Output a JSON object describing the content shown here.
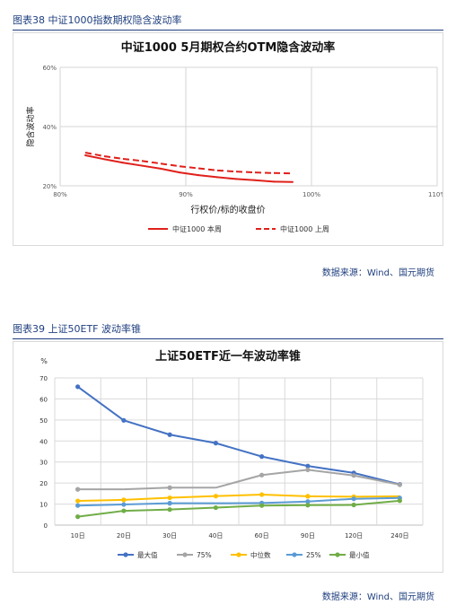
{
  "sections": [
    {
      "title": "图表38 中证1000指数期权隐含波动率",
      "source": "数据来源：Wind、国元期货"
    },
    {
      "title": "图表39 上证50ETF 波动率锥",
      "source": "数据来源：Wind、国元期货"
    }
  ],
  "chart_data": [
    {
      "type": "line",
      "title": "中证1000 5月期权合约OTM隐含波动率",
      "xlabel": "行权价/标的收盘价",
      "ylabel": "隐含波动率",
      "xlim": [
        80,
        110
      ],
      "ylim": [
        20,
        60
      ],
      "x_ticks": [
        80,
        90,
        100,
        110
      ],
      "x_tick_labels": [
        "80%",
        "90%",
        "100%",
        "110%"
      ],
      "y_ticks": [
        20,
        40,
        60
      ],
      "y_tick_labels": [
        "20%",
        "40%",
        "60%"
      ],
      "grid": true,
      "legend_position": "bottom",
      "series": [
        {
          "name": "中证1000 本周",
          "style": "solid",
          "color": "#e0201b",
          "x": [
            82.0,
            83.5,
            85.0,
            86.5,
            88.0,
            89.5,
            91.0,
            92.5,
            94.0,
            95.5,
            97.0,
            98.5
          ],
          "y": [
            30.3,
            29.0,
            27.8,
            26.8,
            25.8,
            24.5,
            23.6,
            22.9,
            22.3,
            21.9,
            21.4,
            21.3
          ]
        },
        {
          "name": "中证1000 上周",
          "style": "dashed",
          "color": "#e0201b",
          "x": [
            82.0,
            83.5,
            85.0,
            86.5,
            88.0,
            89.5,
            91.0,
            92.5,
            94.0,
            95.5,
            97.0,
            98.5
          ],
          "y": [
            31.2,
            30.0,
            29.1,
            28.4,
            27.5,
            26.6,
            25.9,
            25.2,
            24.8,
            24.5,
            24.3,
            24.2
          ]
        }
      ]
    },
    {
      "type": "line",
      "title": "上证50ETF近一年波动率锥",
      "ylabel": "%",
      "ylim": [
        0,
        70
      ],
      "y_ticks": [
        0,
        10,
        20,
        30,
        40,
        50,
        60,
        70
      ],
      "categories": [
        "10日",
        "20日",
        "30日",
        "40日",
        "60日",
        "90日",
        "120日",
        "240日"
      ],
      "grid": true,
      "legend_position": "bottom",
      "series": [
        {
          "name": "最大值",
          "color": "#4472c4",
          "values": [
            65.8,
            49.8,
            43.0,
            39.0,
            32.6,
            28.1,
            24.8,
            19.4
          ]
        },
        {
          "name": "75%",
          "color": "#a5a5a5",
          "values": [
            17.0,
            17.0,
            17.8,
            17.8,
            23.8,
            26.3,
            23.6,
            19.2
          ]
        },
        {
          "name": "中位数",
          "color": "#ffc000",
          "values": [
            11.5,
            12.0,
            13.0,
            13.8,
            14.5,
            13.7,
            13.5,
            13.7
          ]
        },
        {
          "name": "25%",
          "color": "#5b9bd5",
          "values": [
            9.3,
            9.8,
            10.4,
            10.4,
            10.5,
            11.2,
            12.5,
            12.9
          ]
        },
        {
          "name": "最小值",
          "color": "#70ad47",
          "values": [
            4.0,
            6.8,
            7.4,
            8.3,
            9.3,
            9.5,
            9.6,
            11.6
          ]
        }
      ]
    }
  ]
}
